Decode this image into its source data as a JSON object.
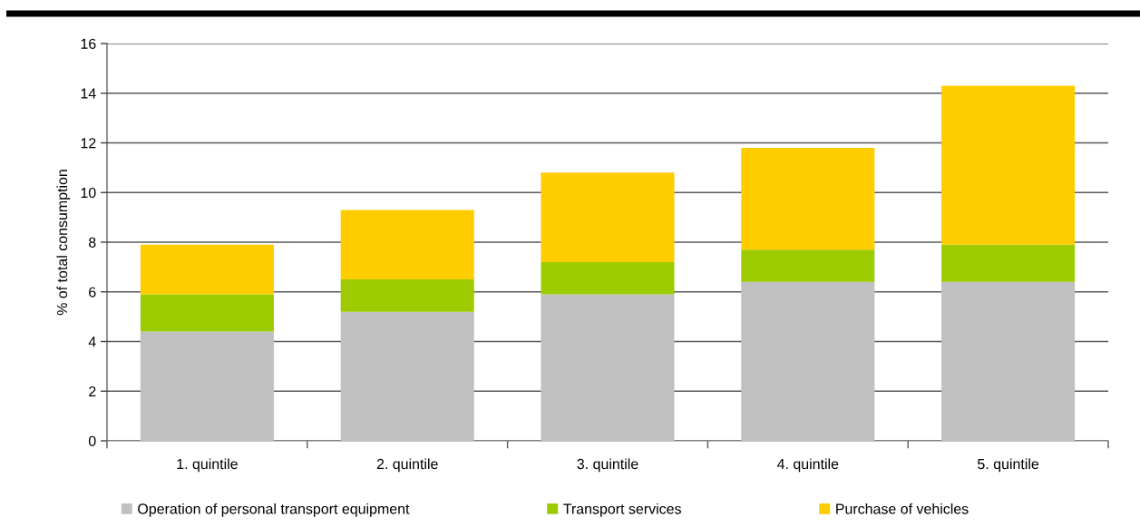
{
  "chart_data": {
    "type": "bar",
    "stacked": true,
    "ylabel": "% of total consumption",
    "categories": [
      "1. quintile",
      "2. quintile",
      "3. quintile",
      "4. quintile",
      "5. quintile"
    ],
    "series": [
      {
        "name": "Operation of personal transport equipment",
        "color": "#c0c0c0",
        "values": [
          4.4,
          5.2,
          5.9,
          6.4,
          6.4
        ]
      },
      {
        "name": "Transport services",
        "color": "#9ccc00",
        "values": [
          1.5,
          1.3,
          1.3,
          1.3,
          1.5
        ]
      },
      {
        "name": "Purchase of vehicles",
        "color": "#ffcc00",
        "values": [
          2.0,
          2.8,
          3.6,
          4.1,
          6.4
        ]
      }
    ],
    "ylim": [
      0,
      16
    ],
    "yticks": [
      0,
      2,
      4,
      6,
      8,
      10,
      12,
      14,
      16
    ],
    "grid": "y",
    "legend": "bottom"
  }
}
